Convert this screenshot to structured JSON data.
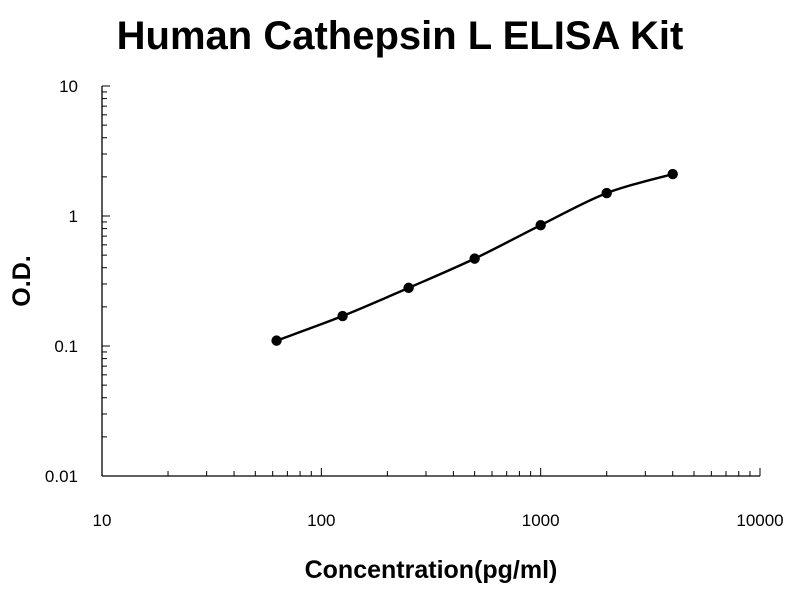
{
  "chart_data": {
    "type": "line",
    "title": "Human Cathepsin L ELISA Kit",
    "xlabel": "Concentration(pg/ml)",
    "ylabel": "O.D.",
    "x_scale": "log",
    "y_scale": "log",
    "xlim": [
      10,
      10000
    ],
    "ylim": [
      0.01,
      10
    ],
    "x_ticks": [
      10,
      100,
      1000,
      10000
    ],
    "x_tick_labels": [
      "10",
      "100",
      "1000",
      "10000"
    ],
    "y_ticks": [
      0.01,
      0.1,
      1,
      10
    ],
    "y_tick_labels": [
      "0.01",
      "0.1",
      "1",
      "10"
    ],
    "grid": false,
    "legend": "none",
    "series": [
      {
        "x": [
          62.5,
          125,
          250,
          500,
          1000,
          2000,
          4000
        ],
        "y": [
          0.11,
          0.17,
          0.28,
          0.47,
          0.85,
          1.5,
          2.1
        ],
        "marker": "circle",
        "smooth": true,
        "color": "#000000"
      }
    ]
  }
}
